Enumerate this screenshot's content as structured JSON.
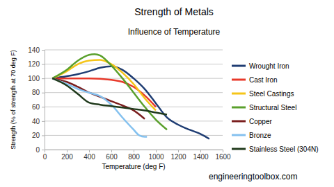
{
  "chart_data": {
    "type": "line",
    "title": "Strength of Metals",
    "subtitle": "Influence of Temperature",
    "xlabel": "Temperature (deg F)",
    "ylabel": "Strength (% of strength at 70 deg F)",
    "annotations": [
      "engineeringtoolbox.com"
    ],
    "xlim": [
      0,
      1600
    ],
    "xticks": [
      0,
      200,
      400,
      600,
      800,
      1000,
      1200,
      1400,
      1600
    ],
    "ylim": [
      0,
      140
    ],
    "yticks": [
      0,
      20,
      40,
      60,
      80,
      100,
      120,
      140
    ],
    "grid": true,
    "legend": "right",
    "series": [
      {
        "name": "Wrought Iron",
        "color": "#1f3d73",
        "x": [
          70,
          200,
          300,
          400,
          500,
          600,
          700,
          800,
          900,
          1000,
          1100,
          1200,
          1300,
          1400,
          1480
        ],
        "values": [
          100,
          103,
          106,
          110,
          115,
          117,
          112,
          100,
          85,
          65,
          45,
          35,
          28,
          22,
          15
        ]
      },
      {
        "name": "Cast Iron",
        "color": "#e8392a",
        "x": [
          70,
          200,
          400,
          600,
          700,
          800,
          900,
          1000
        ],
        "values": [
          100,
          100,
          100,
          98,
          95,
          88,
          76,
          60
        ]
      },
      {
        "name": "Steel Castings",
        "color": "#f5c518",
        "x": [
          70,
          200,
          300,
          400,
          500,
          600,
          700,
          800,
          900,
          1000
        ],
        "values": [
          100,
          110,
          120,
          125,
          126,
          120,
          108,
          92,
          72,
          55
        ]
      },
      {
        "name": "Structural Steel",
        "color": "#5aa02c",
        "x": [
          70,
          200,
          300,
          400,
          450,
          500,
          600,
          700,
          800,
          900,
          1000,
          1100
        ],
        "values": [
          100,
          112,
          125,
          133,
          134,
          132,
          118,
          100,
          80,
          60,
          42,
          28
        ]
      },
      {
        "name": "Copper",
        "color": "#7a1f1f",
        "x": [
          70,
          200,
          300,
          400,
          500,
          600,
          700,
          800,
          900
        ],
        "values": [
          100,
          95,
          88,
          80,
          74,
          68,
          62,
          55,
          43
        ]
      },
      {
        "name": "Bronze",
        "color": "#84c1ef",
        "x": [
          70,
          200,
          300,
          400,
          500,
          600,
          700,
          800,
          850,
          900,
          920
        ],
        "values": [
          100,
          92,
          85,
          80,
          75,
          63,
          45,
          28,
          20,
          18,
          18
        ]
      },
      {
        "name": "Stainless Steel (304N)",
        "color": "#203a1c",
        "x": [
          70,
          200,
          300,
          400,
          500,
          600,
          700,
          800,
          900,
          1000,
          1100
        ],
        "values": [
          100,
          90,
          78,
          66,
          63,
          61,
          59,
          57,
          55,
          52,
          49
        ]
      }
    ]
  }
}
